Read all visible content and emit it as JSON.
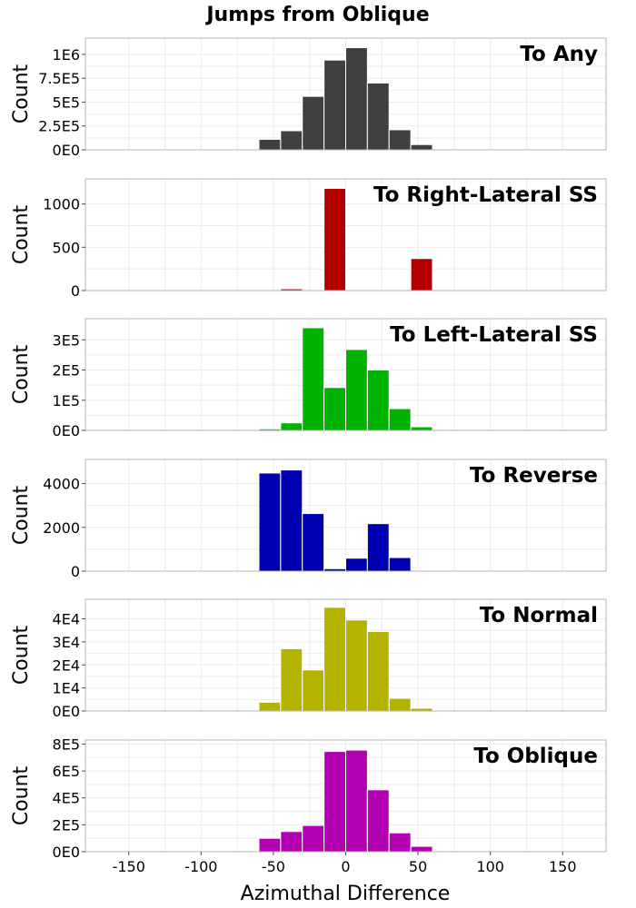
{
  "chart_data": {
    "type": "bar",
    "title": "Jumps from Oblique",
    "xlabel": "Azimuthal Difference",
    "xlim": [
      -180,
      180
    ],
    "xticks": [
      -150,
      -100,
      -50,
      0,
      50,
      100,
      150
    ],
    "xtick_labels": [
      "-150",
      "-100",
      "-50",
      "0",
      "50",
      "100",
      "150"
    ],
    "bin_width": 15,
    "grid": true,
    "panels": [
      {
        "label": "To Any",
        "ylabel": "Count",
        "color": "#404040",
        "ylim": [
          0,
          1170000
        ],
        "yticks": [
          0,
          250000,
          500000,
          750000,
          1000000
        ],
        "ytick_labels": [
          "0E0",
          "2.5E5",
          "5E5",
          "7.5E5",
          "1E6"
        ],
        "bins": [
          -52.5,
          -37.5,
          -22.5,
          -7.5,
          7.5,
          22.5,
          37.5,
          52.5
        ],
        "values": [
          110000,
          200000,
          560000,
          940000,
          1070000,
          700000,
          210000,
          55000
        ]
      },
      {
        "label": "To Right-Lateral SS",
        "ylabel": "Count",
        "color": "#b30000",
        "ylim": [
          0,
          1290
        ],
        "yticks": [
          0,
          500,
          1000
        ],
        "ytick_labels": [
          "0",
          "500",
          "1000"
        ],
        "bins": [
          -37.5,
          -7.5,
          52.5
        ],
        "values": [
          20,
          1180,
          370
        ]
      },
      {
        "label": "To Left-Lateral SS",
        "ylabel": "Count",
        "color": "#00b300",
        "ylim": [
          0,
          370000
        ],
        "yticks": [
          0,
          100000,
          200000,
          300000
        ],
        "ytick_labels": [
          "0E0",
          "1E5",
          "2E5",
          "3E5"
        ],
        "bins": [
          -52.5,
          -37.5,
          -22.5,
          -7.5,
          7.5,
          22.5,
          37.5,
          52.5
        ],
        "values": [
          5000,
          25000,
          340000,
          142000,
          268000,
          200000,
          72000,
          12000
        ]
      },
      {
        "label": "To Reverse",
        "ylabel": "Count",
        "color": "#0000b3",
        "ylim": [
          0,
          5100
        ],
        "yticks": [
          0,
          2000,
          4000
        ],
        "ytick_labels": [
          "0",
          "2000",
          "4000"
        ],
        "bins": [
          -52.5,
          -37.5,
          -22.5,
          -7.5,
          7.5,
          22.5,
          37.5
        ],
        "values": [
          4480,
          4620,
          2630,
          110,
          590,
          2170,
          620
        ]
      },
      {
        "label": "To Normal",
        "ylabel": "Count",
        "color": "#b3b300",
        "ylim": [
          0,
          48500
        ],
        "yticks": [
          0,
          10000,
          20000,
          30000,
          40000
        ],
        "ytick_labels": [
          "0E0",
          "1E4",
          "2E4",
          "3E4",
          "4E4"
        ],
        "bins": [
          -52.5,
          -37.5,
          -22.5,
          -7.5,
          7.5,
          22.5,
          37.5,
          52.5
        ],
        "values": [
          3800,
          27000,
          17800,
          45000,
          39500,
          34500,
          5500,
          1200
        ]
      },
      {
        "label": "To Oblique",
        "ylabel": "Count",
        "color": "#b300b3",
        "ylim": [
          0,
          830000
        ],
        "yticks": [
          0,
          200000,
          400000,
          600000,
          800000
        ],
        "ytick_labels": [
          "0E0",
          "2E5",
          "4E5",
          "6E5",
          "8E5"
        ],
        "bins": [
          -52.5,
          -37.5,
          -22.5,
          -7.5,
          7.5,
          22.5,
          37.5,
          52.5
        ],
        "values": [
          100000,
          150000,
          195000,
          745000,
          755000,
          460000,
          140000,
          40000
        ]
      }
    ]
  }
}
